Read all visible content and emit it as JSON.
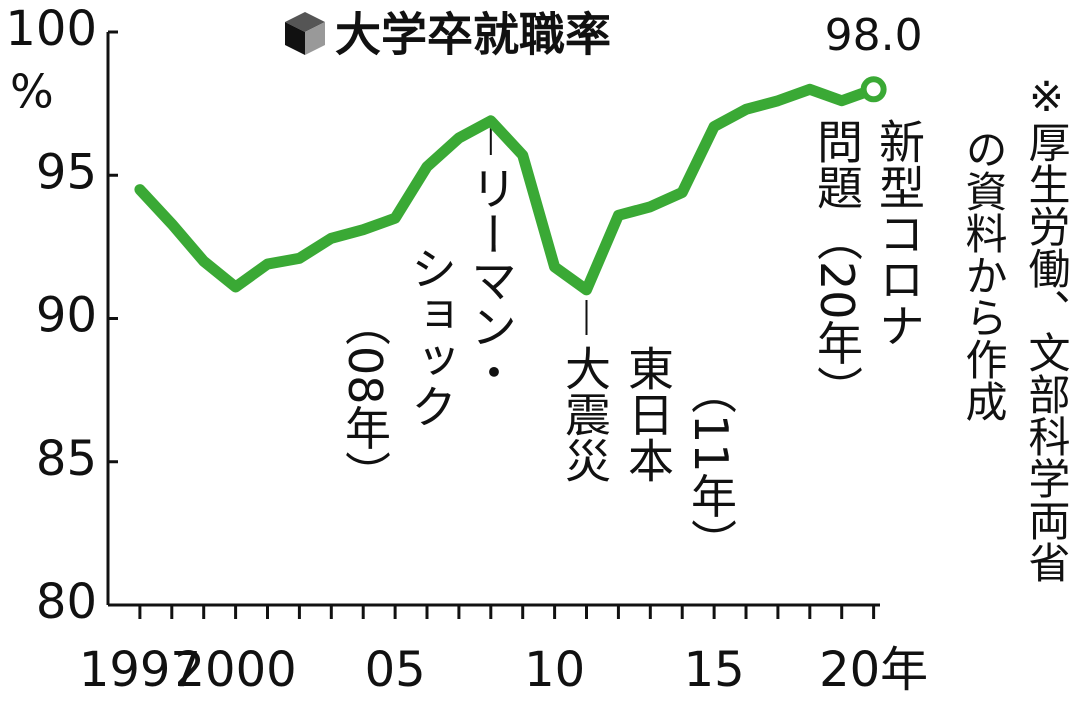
{
  "chart_data": {
    "type": "line",
    "title": "大学卒就職率",
    "x": [
      1997,
      1998,
      1999,
      2000,
      2001,
      2002,
      2003,
      2004,
      2005,
      2006,
      2007,
      2008,
      2009,
      2010,
      2011,
      2012,
      2013,
      2014,
      2015,
      2016,
      2017,
      2018,
      2019,
      2020
    ],
    "series": [
      {
        "color": "#3aa935",
        "values": [
          94.5,
          93.3,
          92.0,
          91.1,
          91.9,
          92.1,
          92.8,
          93.1,
          93.5,
          95.3,
          96.3,
          96.9,
          95.7,
          91.8,
          91.0,
          93.6,
          93.9,
          94.4,
          96.7,
          97.3,
          97.6,
          98.0,
          97.6,
          98.0
        ]
      }
    ],
    "value_labels": [
      null,
      null,
      null,
      null,
      null,
      null,
      null,
      null,
      null,
      null,
      null,
      null,
      null,
      null,
      null,
      null,
      null,
      null,
      null,
      null,
      null,
      null,
      null,
      "98.0"
    ],
    "ylim": [
      80,
      100
    ],
    "yticks": [
      80,
      85,
      90,
      95,
      100
    ],
    "y_unit": "%",
    "xlim": [
      1996,
      2020.2
    ],
    "xticks": [
      1997,
      2000,
      {
        "value": 2005,
        "label": "05"
      },
      {
        "value": 2010,
        "label": "10"
      },
      {
        "value": 2015,
        "label": "15"
      },
      {
        "value": 2020,
        "label": "20年"
      }
    ],
    "annotations": [
      {
        "lines": [
          "リーマン・",
          "ショック",
          "（08年）"
        ]
      },
      {
        "lines": [
          "東日本",
          "大震災",
          "（11年）"
        ]
      },
      {
        "lines": [
          "新型コロナ",
          "問題",
          "（20年）"
        ]
      }
    ],
    "note": [
      "※厚生労働、文部科学両省",
      "の資料から作成"
    ]
  }
}
